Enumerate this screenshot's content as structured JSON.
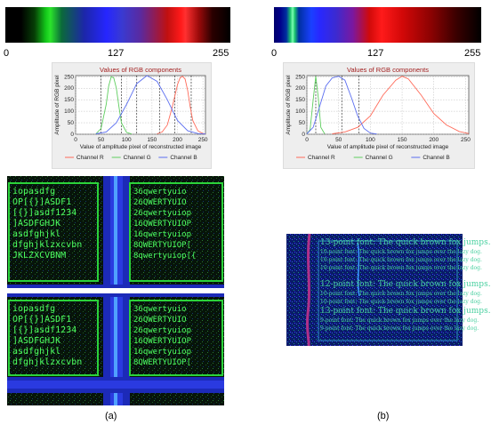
{
  "colorbars": [
    {
      "ticks": [
        "0",
        "127",
        "255"
      ]
    },
    {
      "ticks": [
        "0",
        "127",
        "255"
      ]
    }
  ],
  "chart_data": [
    {
      "type": "line",
      "title": "Values of RGB components",
      "xlabel": "Value of amplitude pixel of reconstructed image",
      "ylabel": "Amplitude of RGB pixel",
      "xlim": [
        0,
        255
      ],
      "ylim": [
        0,
        255
      ],
      "xticks": [
        0,
        50,
        100,
        150,
        200,
        250
      ],
      "yticks": [
        0,
        50,
        100,
        150,
        200,
        250
      ],
      "vlines": [
        50,
        90,
        120,
        165,
        195,
        227
      ],
      "grid": true,
      "legend": "bottom",
      "series": [
        {
          "name": "Channel R",
          "color": "#ff6b5a",
          "x": [
            160,
            170,
            180,
            190,
            200,
            205,
            210,
            215,
            220,
            225,
            230,
            240,
            250,
            255
          ],
          "y": [
            2,
            10,
            40,
            120,
            215,
            245,
            252,
            240,
            190,
            120,
            60,
            15,
            3,
            1
          ]
        },
        {
          "name": "Channel G",
          "color": "#5fce5f",
          "x": [
            40,
            50,
            60,
            65,
            70,
            75,
            80,
            85,
            90,
            100,
            110
          ],
          "y": [
            2,
            25,
            130,
            210,
            250,
            245,
            200,
            120,
            50,
            8,
            1
          ]
        },
        {
          "name": "Channel B",
          "color": "#5b6ef0",
          "x": [
            40,
            60,
            80,
            100,
            120,
            140,
            160,
            180,
            200,
            220,
            240,
            255
          ],
          "y": [
            2,
            10,
            50,
            130,
            220,
            255,
            230,
            150,
            60,
            15,
            3,
            1
          ]
        }
      ]
    },
    {
      "type": "line",
      "title": "Values of RGB components",
      "xlabel": "Value of amplitude pixel of reconstructed image",
      "ylabel": "Amplitude of RGB pixel",
      "xlim": [
        0,
        255
      ],
      "ylim": [
        0,
        255
      ],
      "xticks": [
        0,
        50,
        100,
        150,
        200,
        250
      ],
      "yticks": [
        0,
        50,
        100,
        150,
        200,
        250
      ],
      "vlines": [
        14,
        55,
        82
      ],
      "grid": true,
      "legend": "bottom",
      "series": [
        {
          "name": "Channel R",
          "color": "#ff6b5a",
          "x": [
            40,
            60,
            80,
            100,
            120,
            140,
            150,
            160,
            180,
            200,
            220,
            240,
            255
          ],
          "y": [
            2,
            10,
            30,
            80,
            170,
            235,
            252,
            240,
            170,
            90,
            40,
            12,
            3
          ]
        },
        {
          "name": "Channel G",
          "color": "#5fce5f",
          "x": [
            0,
            5,
            10,
            14,
            18,
            22,
            28
          ],
          "y": [
            2,
            20,
            150,
            252,
            160,
            30,
            2
          ]
        },
        {
          "name": "Channel B",
          "color": "#5b6ef0",
          "x": [
            0,
            10,
            20,
            30,
            40,
            50,
            60,
            70,
            80,
            90,
            100,
            110
          ],
          "y": [
            2,
            30,
            120,
            210,
            245,
            252,
            235,
            160,
            80,
            25,
            5,
            1
          ]
        }
      ]
    }
  ],
  "image_a": {
    "rows": [
      "iopasdfg",
      "OP[{}]ASDF1",
      "[{}]asdf1234",
      "]ASDFGHJK",
      "asdfghjkl",
      "dfghjklzxcvbn",
      "JKLZXCVBNM"
    ],
    "rows_right": [
      "36qwertyuio",
      "26QWERTYUIO",
      "26qwertyuiop",
      "16QWERTYUIOP",
      "16qwertyuiop",
      "8QWERTYUIOP[",
      "8qwertyuiop[{"
    ]
  },
  "image_b": {
    "lines": [
      "13-point font: The quick brown fox jumps.",
      "10-point font: The quick brown fox jumps over the lazy dog.",
      "12-point font: The quick brown fox jumps.",
      "13-point font: The quick brown fox jumps.",
      "9-point font: The quick brown fox jumps over the lazy dog."
    ]
  },
  "captions": [
    "(a)",
    "(b)"
  ]
}
